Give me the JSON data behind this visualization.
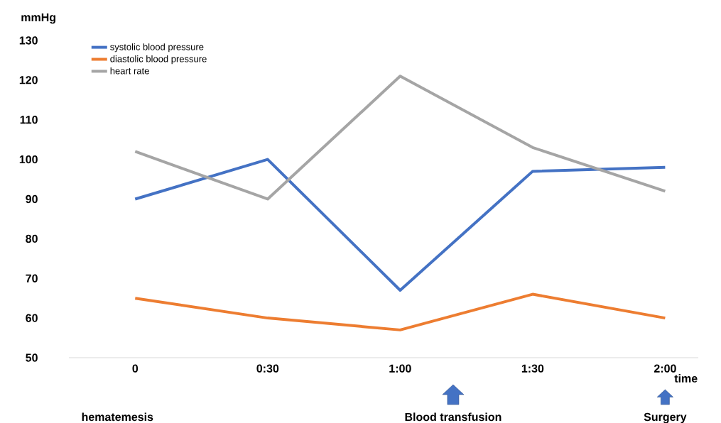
{
  "chart_data": {
    "type": "line",
    "xlabel": "time",
    "ylabel": "mmHg",
    "categories": [
      "0",
      "0:30",
      "1:00",
      "1:30",
      "2:00"
    ],
    "series": [
      {
        "name": "systolic blood pressure",
        "color": "#4472c4",
        "values": [
          90,
          100,
          67,
          97,
          98
        ]
      },
      {
        "name": "diastolic blood pressure",
        "color": "#ed7d31",
        "values": [
          65,
          60,
          57,
          66,
          60
        ]
      },
      {
        "name": "heart rate",
        "color": "#a5a5a5",
        "values": [
          102,
          90,
          121,
          103,
          92
        ]
      }
    ],
    "ylim": [
      50,
      130
    ],
    "yticks": [
      50,
      60,
      70,
      80,
      90,
      100,
      110,
      120,
      130
    ],
    "legend": "top left",
    "marker": "none",
    "line_style": "solid",
    "annotations": [
      "hematemesis",
      "Blood transfusion",
      "Surgery"
    ]
  }
}
